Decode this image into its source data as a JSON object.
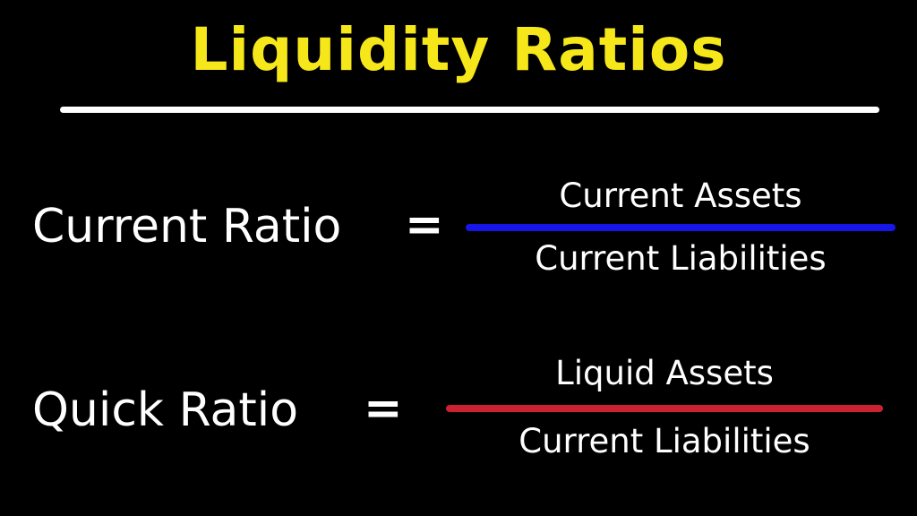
{
  "slide": {
    "title": "Liquidity Ratios",
    "colors": {
      "background": "#000000",
      "title_text": "#f5e71a",
      "body_text": "#ffffff",
      "title_underline": "#ffffff",
      "current_ratio_bar": "#1616e6",
      "quick_ratio_bar": "#cc2130"
    },
    "ratios": [
      {
        "name": "Current Ratio",
        "equals_sign": "=",
        "numerator": "Current Assets",
        "denominator": "Current Liabilities",
        "bar_color": "#1616e6"
      },
      {
        "name": "Quick Ratio",
        "equals_sign": "=",
        "numerator": "Liquid Assets",
        "denominator": "Current Liabilities",
        "bar_color": "#cc2130"
      }
    ]
  }
}
